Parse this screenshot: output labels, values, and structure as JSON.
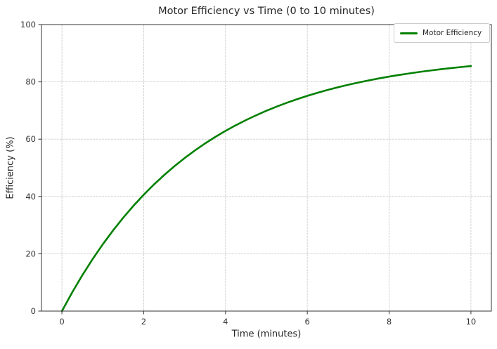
{
  "chart_data": {
    "type": "line",
    "title": "Motor Efficiency vs Time (0 to 10 minutes)",
    "xlabel": "Time (minutes)",
    "ylabel": "Efficiency (%)",
    "xlim": [
      -0.5,
      10.5
    ],
    "ylim": [
      0,
      100
    ],
    "x_ticks": [
      0,
      2,
      4,
      6,
      8,
      10
    ],
    "y_ticks": [
      0,
      20,
      40,
      60,
      80,
      100
    ],
    "grid": true,
    "grid_color": "#cccccc",
    "grid_style": "dashed",
    "spine_color": "#333333",
    "tick_label_color": "#333333",
    "legend": {
      "position": "upper right",
      "entries": [
        {
          "label": "Motor Efficiency",
          "color": "#008000"
        }
      ]
    },
    "series": [
      {
        "name": "Motor Efficiency",
        "color": "#008000",
        "line_width": 2.6,
        "x": [
          0,
          0.25,
          0.5,
          0.75,
          1,
          1.25,
          1.5,
          1.75,
          2,
          2.25,
          2.5,
          2.75,
          3,
          3.25,
          3.5,
          3.75,
          4,
          4.25,
          4.5,
          4.75,
          5,
          5.25,
          5.5,
          5.75,
          6,
          6.25,
          6.5,
          6.75,
          7,
          7.25,
          7.5,
          7.75,
          8,
          8.25,
          8.5,
          8.75,
          9,
          9.25,
          9.5,
          9.75,
          10
        ],
        "values": [
          0,
          6.5,
          12.54,
          18.13,
          23.33,
          28.14,
          32.61,
          36.76,
          40.61,
          44.18,
          47.49,
          50.56,
          53.41,
          56.05,
          58.51,
          60.78,
          62.89,
          64.85,
          66.67,
          68.35,
          69.92,
          71.37,
          72.72,
          73.96,
          75.12,
          76.2,
          77.2,
          78.12,
          78.98,
          79.78,
          80.51,
          81.2,
          81.84,
          82.43,
          82.97,
          83.48,
          83.95,
          84.39,
          84.79,
          85.17,
          85.52
        ]
      }
    ]
  }
}
